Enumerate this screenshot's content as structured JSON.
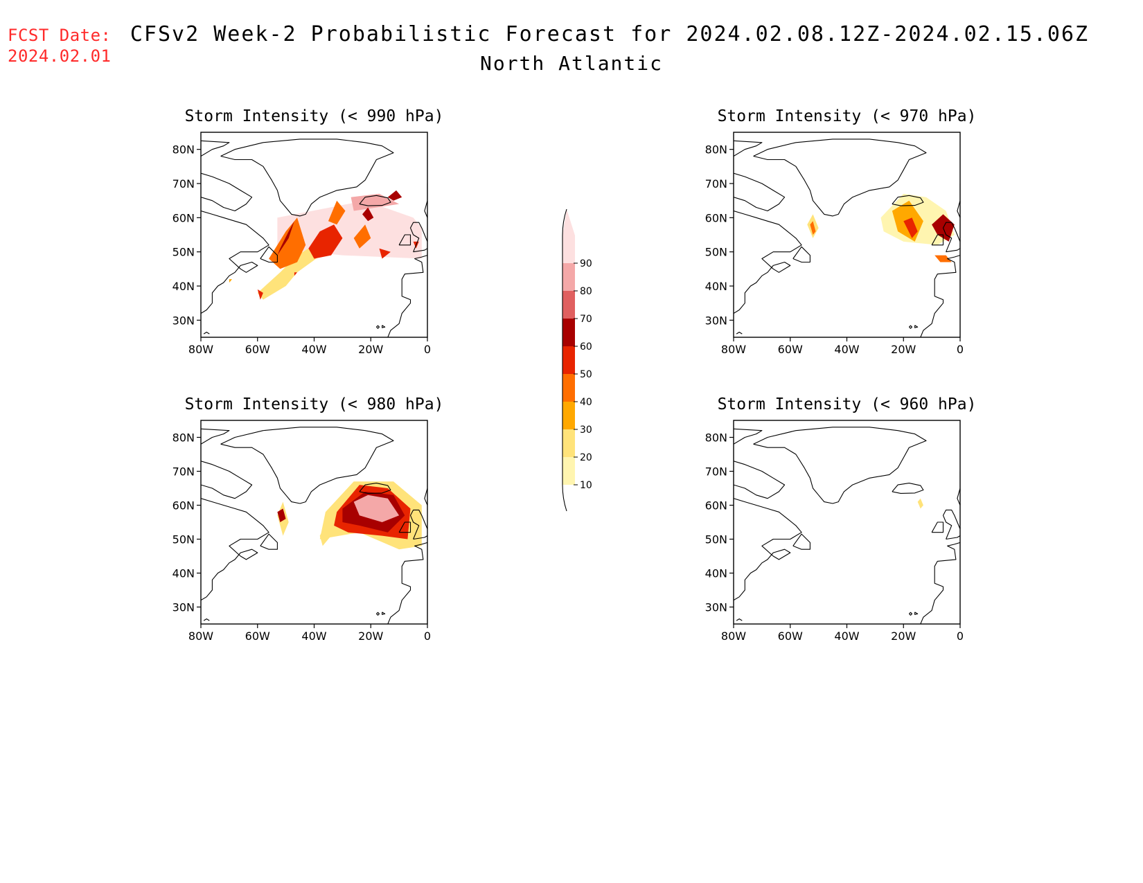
{
  "forecast_date": {
    "label": "FCST Date:",
    "value": "2024.02.01"
  },
  "title": {
    "line1": "CFSv2 Week-2 Probabilistic Forecast for 2024.02.08.12Z-2024.02.15.06Z",
    "line2": "North Atlantic"
  },
  "colors": {
    "c10": "#fff5b0",
    "c20": "#ffe37a",
    "c30": "#ffa800",
    "c40": "#ff6e00",
    "c50": "#e82400",
    "c60": "#a80000",
    "c70": "#e06060",
    "c80": "#f4a8a8",
    "c90": "#fde0e0"
  },
  "colorbar": {
    "levels": [
      "10",
      "20",
      "30",
      "40",
      "50",
      "60",
      "70",
      "80",
      "90"
    ],
    "colors": [
      "#fff5b0",
      "#ffe37a",
      "#ffa800",
      "#ff6e00",
      "#e82400",
      "#a80000",
      "#e06060",
      "#f4a8a8",
      "#fde0e0"
    ]
  },
  "chart_data": [
    {
      "type": "heatmap",
      "title": "Storm Intensity (< 990 hPa)",
      "x_ticks": [
        "80W",
        "60W",
        "40W",
        "20W",
        "0"
      ],
      "y_ticks": [
        "80N",
        "70N",
        "60N",
        "50N",
        "40N",
        "30N"
      ],
      "lon_range": [
        -80,
        0
      ],
      "lat_range": [
        25,
        85
      ],
      "regions": [
        {
          "level": 90,
          "lons": [
            -53,
            -22,
            -5,
            -2,
            -2,
            -30,
            -53
          ],
          "lats": [
            60,
            65,
            60,
            57,
            48,
            49,
            51
          ]
        },
        {
          "level": 80,
          "lons": [
            -27,
            -17,
            -10,
            -26
          ],
          "lats": [
            66,
            67,
            64,
            62
          ]
        },
        {
          "level": 20,
          "lons": [
            -60,
            -52,
            -46,
            -40,
            -36,
            -46,
            -50,
            -58
          ],
          "lats": [
            38,
            44,
            49,
            52,
            50,
            44,
            40,
            36
          ]
        },
        {
          "level": 40,
          "lons": [
            -56,
            -50,
            -46,
            -43,
            -46,
            -52
          ],
          "lats": [
            48,
            56,
            60,
            52,
            47,
            45
          ]
        },
        {
          "level": 60,
          "lons": [
            -53,
            -49,
            -47,
            -49,
            -52
          ],
          "lats": [
            49,
            54,
            59,
            56,
            51
          ]
        },
        {
          "level": 50,
          "lons": [
            -42,
            -38,
            -33,
            -30,
            -34,
            -40
          ],
          "lats": [
            51,
            56,
            58,
            54,
            49,
            48
          ]
        },
        {
          "level": 40,
          "lons": [
            -35,
            -32,
            -29,
            -32
          ],
          "lats": [
            59,
            65,
            62,
            58
          ]
        },
        {
          "level": 40,
          "lons": [
            -26,
            -22,
            -20,
            -24
          ],
          "lats": [
            54,
            58,
            54,
            51
          ]
        },
        {
          "level": 60,
          "lons": [
            -23,
            -21,
            -19,
            -21
          ],
          "lats": [
            61,
            63,
            60,
            59
          ]
        },
        {
          "level": 50,
          "lons": [
            -17,
            -13,
            -16
          ],
          "lats": [
            51,
            50,
            48
          ]
        },
        {
          "level": 60,
          "lons": [
            -14,
            -11,
            -9,
            -12
          ],
          "lats": [
            66,
            68,
            66,
            65
          ]
        },
        {
          "level": 50,
          "lons": [
            -5,
            -3,
            -4
          ],
          "lats": [
            53,
            53,
            51
          ]
        },
        {
          "level": 50,
          "lons": [
            -60,
            -58,
            -59
          ],
          "lats": [
            39,
            38,
            36
          ]
        },
        {
          "level": 30,
          "lons": [
            -70,
            -69,
            -70
          ],
          "lats": [
            42,
            42,
            41
          ]
        },
        {
          "level": 50,
          "lons": [
            -47,
            -46,
            -47
          ],
          "lats": [
            44,
            44,
            43
          ]
        }
      ]
    },
    {
      "type": "heatmap",
      "title": "Storm Intensity (< 970 hPa)",
      "x_ticks": [
        "80W",
        "60W",
        "40W",
        "20W",
        "0"
      ],
      "y_ticks": [
        "80N",
        "70N",
        "60N",
        "50N",
        "40N",
        "30N"
      ],
      "lon_range": [
        -80,
        0
      ],
      "lat_range": [
        25,
        85
      ],
      "regions": [
        {
          "level": 10,
          "lons": [
            -28,
            -20,
            -12,
            -5,
            -2,
            -8,
            -20,
            -27
          ],
          "lats": [
            60,
            67,
            66,
            62,
            55,
            52,
            53,
            56
          ]
        },
        {
          "level": 30,
          "lons": [
            -24,
            -18,
            -13,
            -16,
            -22
          ],
          "lats": [
            62,
            65,
            59,
            53,
            56
          ]
        },
        {
          "level": 50,
          "lons": [
            -20,
            -17,
            -15,
            -17
          ],
          "lats": [
            59,
            60,
            56,
            54
          ]
        },
        {
          "level": 60,
          "lons": [
            -10,
            -6,
            -2,
            -4,
            -8
          ],
          "lats": [
            58,
            61,
            58,
            53,
            55
          ]
        },
        {
          "level": 40,
          "lons": [
            -9,
            -5,
            -3,
            -7
          ],
          "lats": [
            49,
            49,
            47,
            47
          ]
        },
        {
          "level": 20,
          "lons": [
            -54,
            -52,
            -50,
            -52
          ],
          "lats": [
            58,
            61,
            57,
            54
          ]
        },
        {
          "level": 40,
          "lons": [
            -53,
            -52,
            -51,
            -52
          ],
          "lats": [
            58,
            59,
            56,
            55
          ]
        }
      ]
    },
    {
      "type": "heatmap",
      "title": "Storm Intensity (< 980 hPa)",
      "x_ticks": [
        "80W",
        "60W",
        "40W",
        "20W",
        "0"
      ],
      "y_ticks": [
        "80N",
        "70N",
        "60N",
        "50N",
        "40N",
        "30N"
      ],
      "lon_range": [
        -80,
        0
      ],
      "lat_range": [
        25,
        85
      ],
      "regions": [
        {
          "level": 20,
          "lons": [
            -36,
            -26,
            -12,
            -2,
            -2,
            -10,
            -24,
            -38
          ],
          "lats": [
            58,
            67,
            67,
            60,
            48,
            47,
            52,
            50
          ]
        },
        {
          "level": 50,
          "lons": [
            -32,
            -24,
            -14,
            -6,
            -7,
            -16,
            -28,
            -33
          ],
          "lats": [
            58,
            66,
            65,
            59,
            50,
            51,
            52,
            54
          ]
        },
        {
          "level": 60,
          "lons": [
            -30,
            -22,
            -12,
            -8,
            -14,
            -24,
            -30
          ],
          "lats": [
            59,
            64,
            63,
            57,
            52,
            54,
            55
          ]
        },
        {
          "level": 80,
          "lons": [
            -26,
            -21,
            -14,
            -10,
            -16,
            -24
          ],
          "lats": [
            61,
            63,
            62,
            57,
            55,
            57
          ]
        },
        {
          "level": 20,
          "lons": [
            -53,
            -51,
            -49,
            -51
          ],
          "lats": [
            57,
            61,
            55,
            51
          ]
        },
        {
          "level": 60,
          "lons": [
            -53,
            -51,
            -50,
            -52
          ],
          "lats": [
            58,
            59,
            56,
            55
          ]
        },
        {
          "level": 20,
          "lons": [
            -38,
            -36,
            -34,
            -37
          ],
          "lats": [
            51,
            54,
            51,
            48
          ]
        }
      ]
    },
    {
      "type": "heatmap",
      "title": "Storm Intensity (< 960 hPa)",
      "x_ticks": [
        "80W",
        "60W",
        "40W",
        "20W",
        "0"
      ],
      "y_ticks": [
        "80N",
        "70N",
        "60N",
        "50N",
        "40N",
        "30N"
      ],
      "lon_range": [
        -80,
        0
      ],
      "lat_range": [
        25,
        85
      ],
      "regions": [
        {
          "level": 20,
          "lons": [
            -15,
            -14,
            -13,
            -14
          ],
          "lats": [
            61,
            62,
            60,
            59
          ]
        }
      ]
    }
  ]
}
